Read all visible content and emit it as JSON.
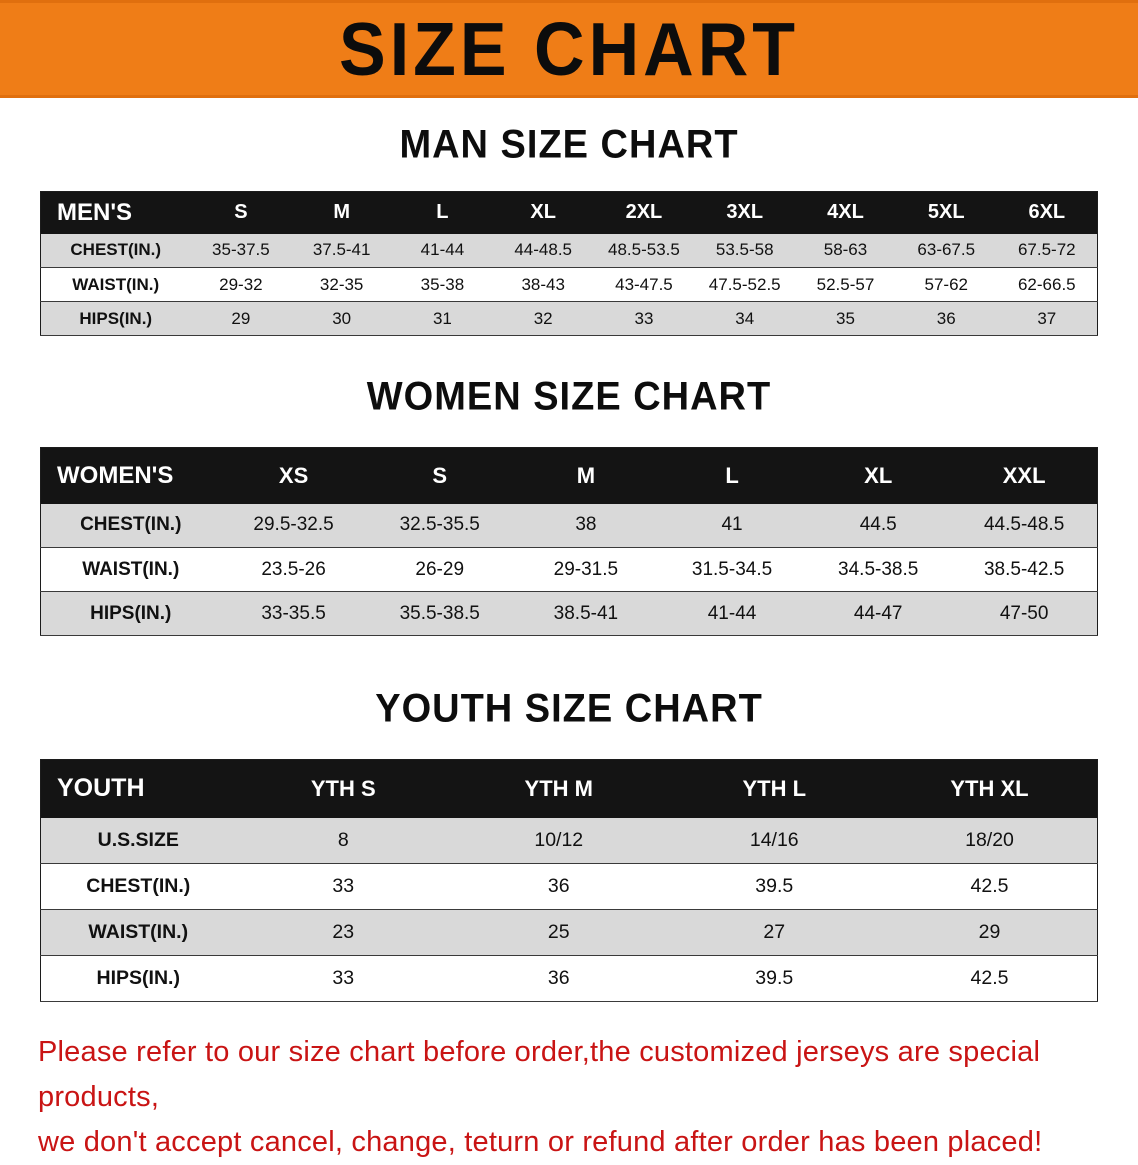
{
  "banner": {
    "title": "SIZE CHART"
  },
  "sections": {
    "men": {
      "heading": "MAN SIZE CHART"
    },
    "women": {
      "heading": "WOMEN SIZE CHART"
    },
    "youth": {
      "heading": "YOUTH SIZE CHART"
    }
  },
  "tables": {
    "men": {
      "header": [
        "MEN'S",
        "S",
        "M",
        "L",
        "XL",
        "2XL",
        "3XL",
        "4XL",
        "5XL",
        "6XL"
      ],
      "rows": [
        [
          "CHEST(IN.)",
          "35-37.5",
          "37.5-41",
          "41-44",
          "44-48.5",
          "48.5-53.5",
          "53.5-58",
          "58-63",
          "63-67.5",
          "67.5-72"
        ],
        [
          "WAIST(IN.)",
          "29-32",
          "32-35",
          "35-38",
          "38-43",
          "43-47.5",
          "47.5-52.5",
          "52.5-57",
          "57-62",
          "62-66.5"
        ],
        [
          "HIPS(IN.)",
          "29",
          "30",
          "31",
          "32",
          "33",
          "34",
          "35",
          "36",
          "37"
        ]
      ]
    },
    "women": {
      "header": [
        "WOMEN'S",
        "XS",
        "S",
        "M",
        "L",
        "XL",
        "XXL"
      ],
      "rows": [
        [
          "CHEST(IN.)",
          "29.5-32.5",
          "32.5-35.5",
          "38",
          "41",
          "44.5",
          "44.5-48.5"
        ],
        [
          "WAIST(IN.)",
          "23.5-26",
          "26-29",
          "29-31.5",
          "31.5-34.5",
          "34.5-38.5",
          "38.5-42.5"
        ],
        [
          "HIPS(IN.)",
          "33-35.5",
          "35.5-38.5",
          "38.5-41",
          "41-44",
          "44-47",
          "47-50"
        ]
      ]
    },
    "youth": {
      "header": [
        "YOUTH",
        "YTH S",
        "YTH M",
        "YTH L",
        "YTH XL"
      ],
      "rows": [
        [
          "U.S.SIZE",
          "8",
          "10/12",
          "14/16",
          "18/20"
        ],
        [
          "CHEST(IN.)",
          "33",
          "36",
          "39.5",
          "42.5"
        ],
        [
          "WAIST(IN.)",
          "23",
          "25",
          "27",
          "29"
        ],
        [
          "HIPS(IN.)",
          "33",
          "36",
          "39.5",
          "42.5"
        ]
      ]
    }
  },
  "disclaimer": {
    "line1": "Please refer to our size chart before order,the customized jerseys are special products,",
    "line2": "we don't accept cancel, change, teturn or refund after order has been placed!"
  },
  "colors": {
    "banner_bg": "#ef7d17",
    "banner_edge": "#e06f0e",
    "table_header_bg": "#141414",
    "row_alt_bg": "#d9d9d9",
    "disclaimer_red": "#c91414"
  }
}
